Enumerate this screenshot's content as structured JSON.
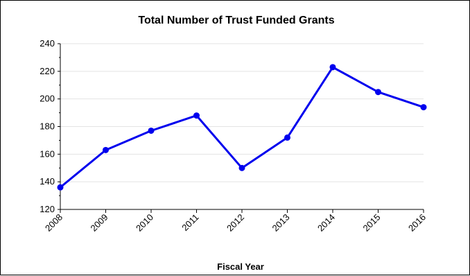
{
  "chart_data": {
    "type": "line",
    "title": "Total Number of Trust Funded Grants",
    "xlabel": "Fiscal Year",
    "ylabel": "",
    "categories": [
      "2008",
      "2009",
      "2010",
      "2011",
      "2012",
      "2013",
      "2014",
      "2015",
      "2016"
    ],
    "series": [
      {
        "values": [
          136,
          163,
          177,
          188,
          150,
          172,
          223,
          205,
          194
        ],
        "color": "#0000ee"
      }
    ],
    "ylim": [
      120,
      240
    ],
    "yticks": [
      120,
      140,
      160,
      180,
      200,
      220,
      240
    ],
    "grid": "horizontal",
    "legend": "none"
  }
}
